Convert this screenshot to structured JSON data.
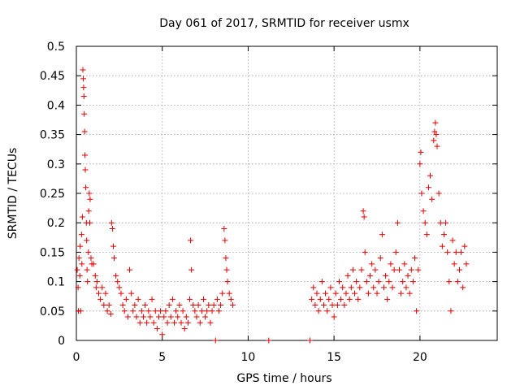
{
  "chart_data": {
    "type": "scatter",
    "title": "Day 061 of 2017, SRMTID for receiver usmx",
    "xlabel": "GPS time / hours",
    "ylabel": "SRMTID / TECUs",
    "xlim": [
      0,
      24.5
    ],
    "ylim": [
      0,
      0.5
    ],
    "x_ticks": [
      0,
      5,
      10,
      15,
      20
    ],
    "y_ticks": [
      0,
      0.05,
      0.1,
      0.15,
      0.2,
      0.25,
      0.3,
      0.35,
      0.4,
      0.45,
      0.5
    ],
    "grid": true,
    "marker": "+",
    "marker_color": "#e00000",
    "series": [
      {
        "name": "SRMTID",
        "points": [
          [
            0.05,
            0.12
          ],
          [
            0.1,
            0.09
          ],
          [
            0.12,
            0.05
          ],
          [
            0.15,
            0.14
          ],
          [
            0.2,
            0.11
          ],
          [
            0.22,
            0.16
          ],
          [
            0.25,
            0.05
          ],
          [
            0.3,
            0.18
          ],
          [
            0.32,
            0.13
          ],
          [
            0.35,
            0.21
          ],
          [
            0.38,
            0.46
          ],
          [
            0.4,
            0.445
          ],
          [
            0.42,
            0.43
          ],
          [
            0.44,
            0.415
          ],
          [
            0.46,
            0.385
          ],
          [
            0.48,
            0.355
          ],
          [
            0.5,
            0.315
          ],
          [
            0.52,
            0.29
          ],
          [
            0.55,
            0.26
          ],
          [
            0.58,
            0.2
          ],
          [
            0.6,
            0.17
          ],
          [
            0.62,
            0.12
          ],
          [
            0.65,
            0.1
          ],
          [
            0.7,
            0.15
          ],
          [
            0.72,
            0.22
          ],
          [
            0.75,
            0.25
          ],
          [
            0.78,
            0.2
          ],
          [
            0.8,
            0.24
          ],
          [
            0.85,
            0.14
          ],
          [
            0.9,
            0.13
          ],
          [
            1.0,
            0.13
          ],
          [
            1.1,
            0.11
          ],
          [
            1.15,
            0.09
          ],
          [
            1.2,
            0.1
          ],
          [
            1.3,
            0.08
          ],
          [
            1.4,
            0.07
          ],
          [
            1.5,
            0.09
          ],
          [
            1.6,
            0.06
          ],
          [
            1.7,
            0.08
          ],
          [
            1.8,
            0.05
          ],
          [
            1.9,
            0.06
          ],
          [
            2.0,
            0.045
          ],
          [
            2.05,
            0.2
          ],
          [
            2.1,
            0.19
          ],
          [
            2.15,
            0.16
          ],
          [
            2.2,
            0.14
          ],
          [
            2.3,
            0.11
          ],
          [
            2.4,
            0.1
          ],
          [
            2.5,
            0.09
          ],
          [
            2.6,
            0.08
          ],
          [
            2.7,
            0.06
          ],
          [
            2.8,
            0.05
          ],
          [
            2.9,
            0.07
          ],
          [
            3.0,
            0.04
          ],
          [
            3.1,
            0.12
          ],
          [
            3.2,
            0.08
          ],
          [
            3.3,
            0.05
          ],
          [
            3.4,
            0.06
          ],
          [
            3.5,
            0.04
          ],
          [
            3.6,
            0.07
          ],
          [
            3.7,
            0.03
          ],
          [
            3.8,
            0.05
          ],
          [
            3.9,
            0.04
          ],
          [
            4.0,
            0.06
          ],
          [
            4.1,
            0.03
          ],
          [
            4.2,
            0.05
          ],
          [
            4.3,
            0.04
          ],
          [
            4.4,
            0.07
          ],
          [
            4.5,
            0.03
          ],
          [
            4.6,
            0.05
          ],
          [
            4.7,
            0.02
          ],
          [
            4.8,
            0.04
          ],
          [
            4.9,
            0.05
          ],
          [
            5.0,
            0.01
          ],
          [
            5.1,
            0.04
          ],
          [
            5.2,
            0.05
          ],
          [
            5.3,
            0.03
          ],
          [
            5.4,
            0.06
          ],
          [
            5.5,
            0.04
          ],
          [
            5.6,
            0.07
          ],
          [
            5.7,
            0.03
          ],
          [
            5.8,
            0.05
          ],
          [
            5.9,
            0.04
          ],
          [
            6.0,
            0.06
          ],
          [
            6.1,
            0.03
          ],
          [
            6.2,
            0.05
          ],
          [
            6.3,
            0.02
          ],
          [
            6.4,
            0.04
          ],
          [
            6.5,
            0.03
          ],
          [
            6.6,
            0.07
          ],
          [
            6.65,
            0.17
          ],
          [
            6.7,
            0.12
          ],
          [
            6.8,
            0.06
          ],
          [
            6.9,
            0.05
          ],
          [
            7.0,
            0.04
          ],
          [
            7.1,
            0.06
          ],
          [
            7.2,
            0.03
          ],
          [
            7.3,
            0.05
          ],
          [
            7.4,
            0.07
          ],
          [
            7.5,
            0.04
          ],
          [
            7.6,
            0.05
          ],
          [
            7.7,
            0.06
          ],
          [
            7.8,
            0.03
          ],
          [
            7.9,
            0.05
          ],
          [
            8.0,
            0.06
          ],
          [
            8.1,
            0.0
          ],
          [
            8.2,
            0.07
          ],
          [
            8.3,
            0.05
          ],
          [
            8.4,
            0.06
          ],
          [
            8.5,
            0.08
          ],
          [
            8.6,
            0.19
          ],
          [
            8.65,
            0.17
          ],
          [
            8.7,
            0.14
          ],
          [
            8.75,
            0.12
          ],
          [
            8.8,
            0.1
          ],
          [
            8.9,
            0.08
          ],
          [
            9.0,
            0.07
          ],
          [
            9.1,
            0.06
          ],
          [
            11.2,
            0.0
          ],
          [
            13.6,
            0.0
          ],
          [
            13.7,
            0.07
          ],
          [
            13.8,
            0.09
          ],
          [
            13.9,
            0.06
          ],
          [
            14.0,
            0.08
          ],
          [
            14.1,
            0.05
          ],
          [
            14.2,
            0.07
          ],
          [
            14.3,
            0.1
          ],
          [
            14.4,
            0.06
          ],
          [
            14.5,
            0.08
          ],
          [
            14.6,
            0.05
          ],
          [
            14.7,
            0.07
          ],
          [
            14.8,
            0.09
          ],
          [
            14.9,
            0.06
          ],
          [
            15.0,
            0.04
          ],
          [
            15.1,
            0.08
          ],
          [
            15.2,
            0.06
          ],
          [
            15.3,
            0.1
          ],
          [
            15.4,
            0.07
          ],
          [
            15.5,
            0.09
          ],
          [
            15.6,
            0.06
          ],
          [
            15.7,
            0.08
          ],
          [
            15.8,
            0.11
          ],
          [
            15.9,
            0.07
          ],
          [
            16.0,
            0.09
          ],
          [
            16.1,
            0.12
          ],
          [
            16.2,
            0.08
          ],
          [
            16.3,
            0.1
          ],
          [
            16.4,
            0.07
          ],
          [
            16.5,
            0.09
          ],
          [
            16.6,
            0.12
          ],
          [
            16.7,
            0.22
          ],
          [
            16.75,
            0.21
          ],
          [
            16.8,
            0.15
          ],
          [
            16.9,
            0.1
          ],
          [
            17.0,
            0.08
          ],
          [
            17.1,
            0.11
          ],
          [
            17.2,
            0.13
          ],
          [
            17.3,
            0.09
          ],
          [
            17.4,
            0.12
          ],
          [
            17.5,
            0.08
          ],
          [
            17.6,
            0.1
          ],
          [
            17.7,
            0.14
          ],
          [
            17.8,
            0.18
          ],
          [
            17.9,
            0.09
          ],
          [
            18.0,
            0.11
          ],
          [
            18.1,
            0.07
          ],
          [
            18.2,
            0.1
          ],
          [
            18.3,
            0.13
          ],
          [
            18.4,
            0.09
          ],
          [
            18.5,
            0.12
          ],
          [
            18.6,
            0.15
          ],
          [
            18.7,
            0.2
          ],
          [
            18.8,
            0.12
          ],
          [
            18.9,
            0.08
          ],
          [
            19.0,
            0.1
          ],
          [
            19.1,
            0.13
          ],
          [
            19.2,
            0.09
          ],
          [
            19.3,
            0.11
          ],
          [
            19.4,
            0.08
          ],
          [
            19.5,
            0.12
          ],
          [
            19.6,
            0.1
          ],
          [
            19.7,
            0.14
          ],
          [
            19.8,
            0.05
          ],
          [
            19.9,
            0.12
          ],
          [
            20.0,
            0.3
          ],
          [
            20.05,
            0.32
          ],
          [
            20.1,
            0.25
          ],
          [
            20.2,
            0.22
          ],
          [
            20.3,
            0.2
          ],
          [
            20.4,
            0.18
          ],
          [
            20.5,
            0.26
          ],
          [
            20.6,
            0.28
          ],
          [
            20.7,
            0.24
          ],
          [
            20.8,
            0.34
          ],
          [
            20.85,
            0.355
          ],
          [
            20.9,
            0.37
          ],
          [
            20.95,
            0.35
          ],
          [
            21.0,
            0.33
          ],
          [
            21.1,
            0.25
          ],
          [
            21.2,
            0.2
          ],
          [
            21.3,
            0.16
          ],
          [
            21.4,
            0.18
          ],
          [
            21.5,
            0.2
          ],
          [
            21.6,
            0.15
          ],
          [
            21.7,
            0.1
          ],
          [
            21.8,
            0.05
          ],
          [
            21.9,
            0.17
          ],
          [
            22.0,
            0.13
          ],
          [
            22.1,
            0.15
          ],
          [
            22.2,
            0.1
          ],
          [
            22.3,
            0.12
          ],
          [
            22.4,
            0.15
          ],
          [
            22.5,
            0.09
          ],
          [
            22.6,
            0.16
          ],
          [
            22.7,
            0.13
          ]
        ]
      }
    ]
  }
}
